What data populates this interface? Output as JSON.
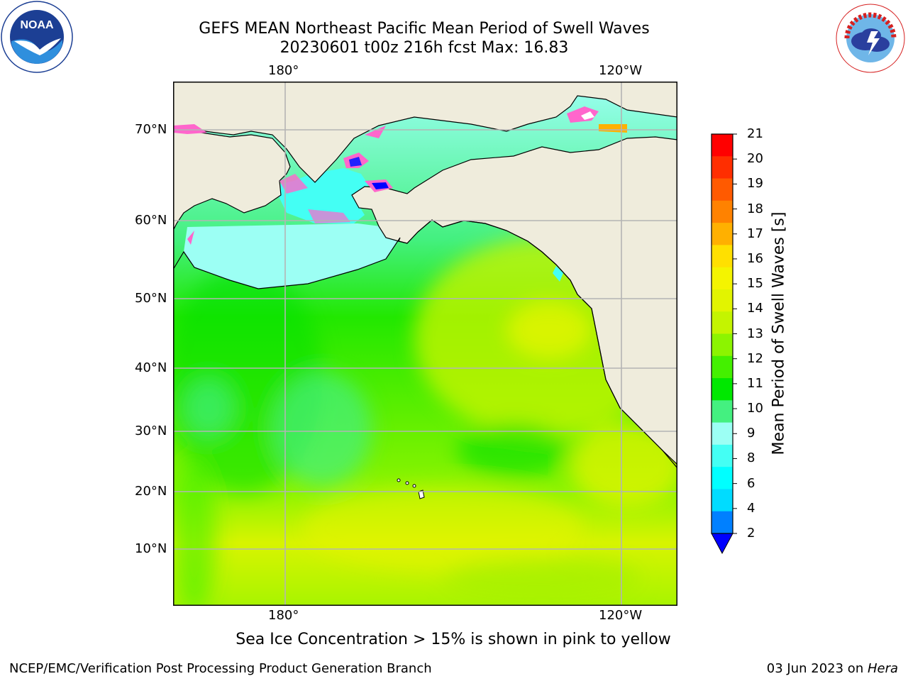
{
  "title": {
    "line1": "GEFS MEAN Northeast Pacific Mean Period of Swell Waves",
    "line2": "20230601 t00z 216h fcst   Max: 16.83"
  },
  "logos": {
    "noaa": {
      "text": "NOAA",
      "ring_text": "NATIONAL OCEANIC AND ATMOSPHERIC ADMINISTRATION · U.S. DEPARTMENT OF COMMERCE"
    },
    "nws": {
      "ring_text": "NATIONAL WEATHER SERVICE"
    }
  },
  "map": {
    "longitude_labels": [
      "180°",
      "120°W"
    ],
    "latitude_labels": [
      "70°N",
      "60°N",
      "50°N",
      "40°N",
      "30°N",
      "20°N",
      "10°N"
    ],
    "land_color": "#efecdc",
    "grid_color": "#b4b4b4"
  },
  "colorbar": {
    "label": "Mean Period of Swell Waves [s]",
    "ticks": [
      "21",
      "20",
      "19",
      "18",
      "17",
      "16",
      "15",
      "14",
      "13",
      "12",
      "11",
      "10",
      "9",
      "8",
      "6",
      "4",
      "2"
    ],
    "colors_top_to_bottom": [
      "#ff0000",
      "#ff2e00",
      "#ff5a00",
      "#ff8200",
      "#ffb000",
      "#ffe000",
      "#f4f400",
      "#e2f400",
      "#c4f400",
      "#8cf400",
      "#44f000",
      "#00e800",
      "#44f080",
      "#9cfff4",
      "#44fff4",
      "#00ffff",
      "#00dcff",
      "#0080ff"
    ],
    "under_color": "#0000ff"
  },
  "caption": "Sea Ice Concentration > 15% is shown in pink to yellow",
  "footer": {
    "left": "NCEP/EMC/Verification Post Processing Product Generation Branch",
    "right_prefix": "03 Jun 2023 on ",
    "right_italic": "Hera"
  }
}
